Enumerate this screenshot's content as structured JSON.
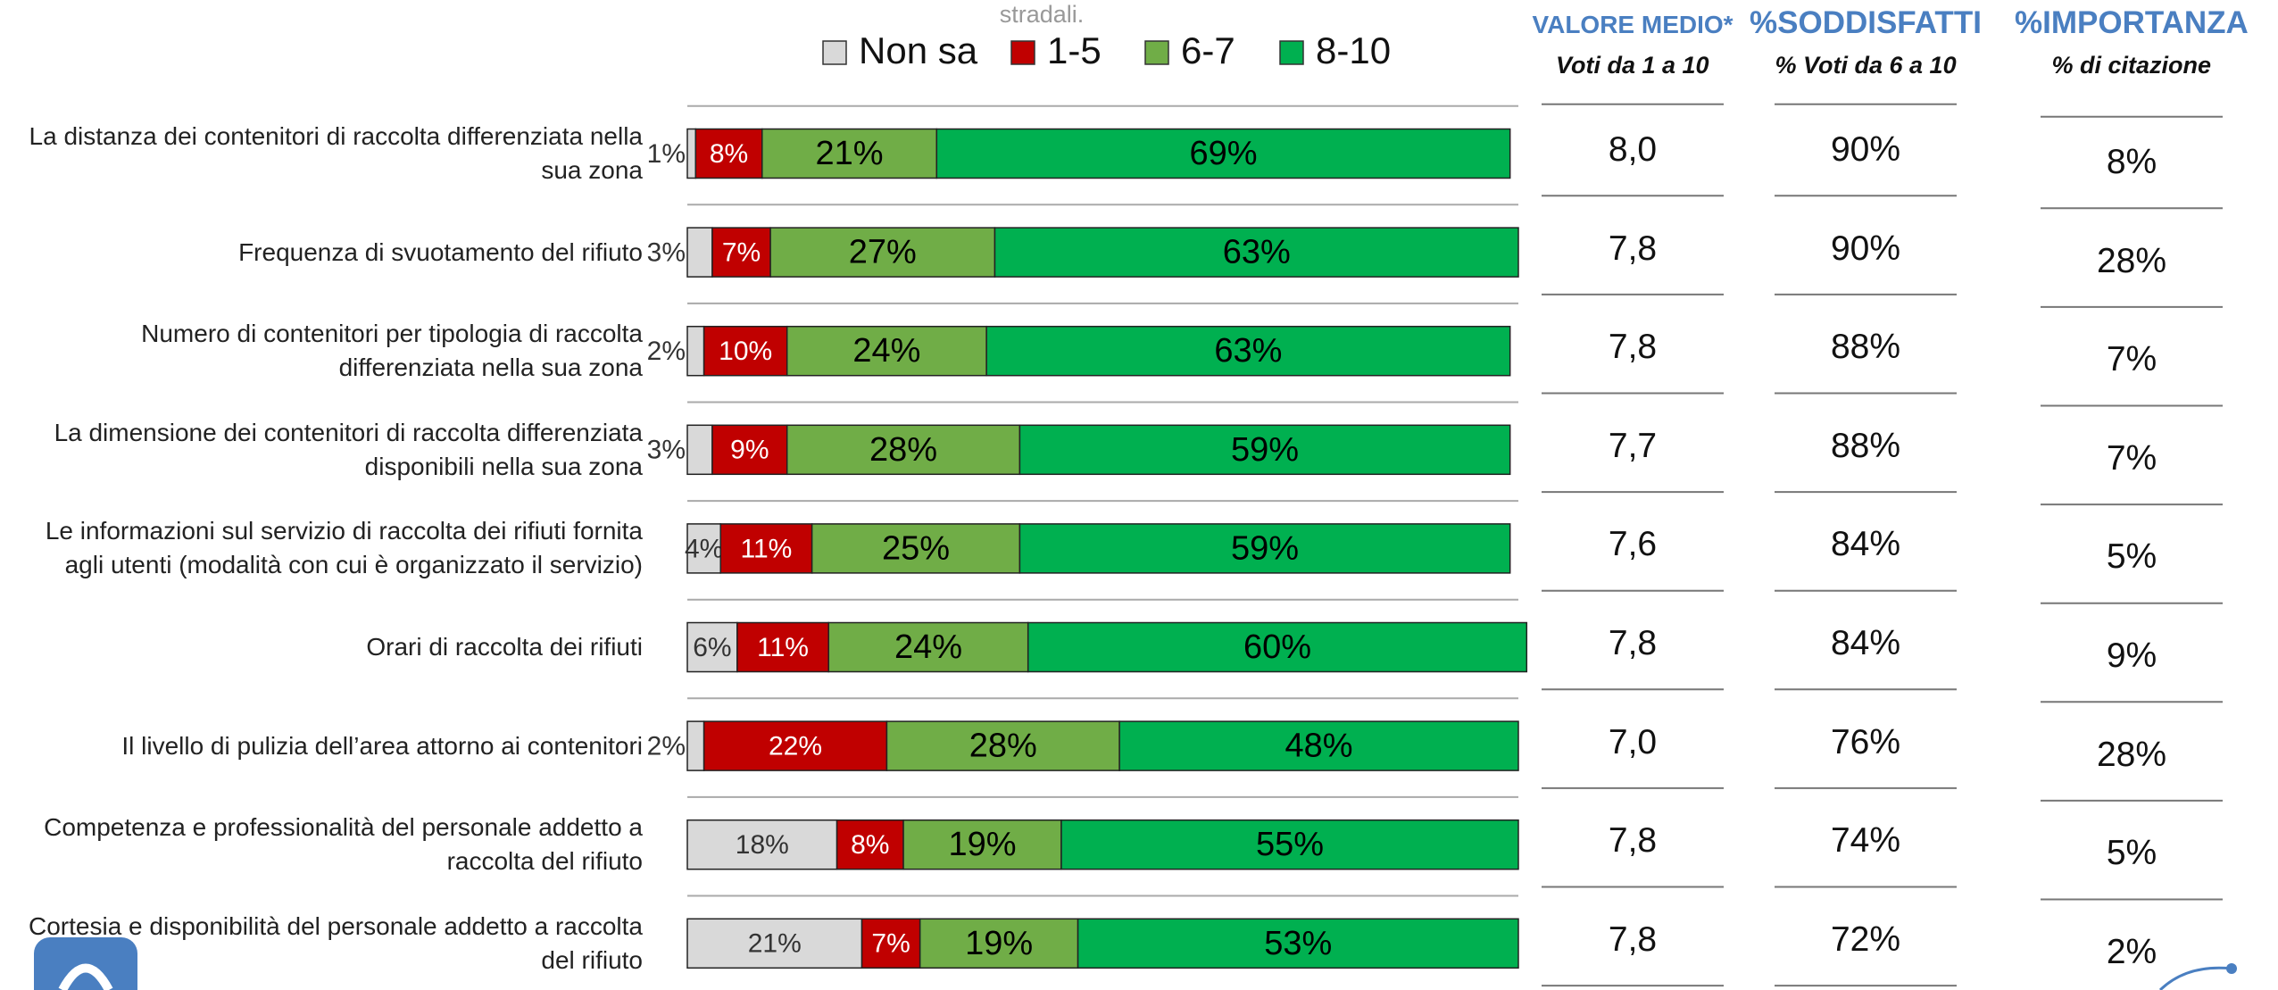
{
  "chart_data": {
    "type": "stacked-bar-horizontal",
    "title": "stradali.",
    "categories": [
      "La distanza dei contenitori di raccolta differenziata nella sua zona",
      "Frequenza di svuotamento del rifiuto",
      "Numero di contenitori per tipologia di raccolta differenziata nella sua zona",
      "La dimensione dei contenitori di raccolta differenziata disponibili nella sua zona",
      "Le informazioni sul servizio di raccolta dei rifiuti fornita agli utenti (modalità con cui è organizzato il servizio)",
      "Orari di raccolta dei rifiuti",
      "Il livello di pulizia dell’area attorno ai contenitori",
      "Competenza e professionalità del personale addetto a raccolta del rifiuto",
      "Cortesia e disponibilità del personale addetto a raccolta del rifiuto"
    ],
    "xlim": [
      0,
      100
    ],
    "series": [
      {
        "name": "Non sa",
        "color": "#d9d9d9",
        "values": [
          1,
          3,
          2,
          3,
          4,
          6,
          2,
          18,
          21
        ],
        "value_labels": [
          "1%",
          "3%",
          "2%",
          "3%",
          "4%",
          "6%",
          "2%",
          "18%",
          "21%"
        ]
      },
      {
        "name": "1-5",
        "color": "#c00000",
        "values": [
          8,
          7,
          10,
          9,
          11,
          11,
          22,
          8,
          7
        ],
        "value_labels": [
          "8%",
          "7%",
          "10%",
          "9%",
          "11%",
          "11%",
          "22%",
          "8%",
          "7%"
        ]
      },
      {
        "name": "6-7",
        "color": "#70ad47",
        "values": [
          21,
          27,
          24,
          28,
          25,
          24,
          28,
          19,
          19
        ],
        "value_labels": [
          "21%",
          "27%",
          "24%",
          "28%",
          "25%",
          "24%",
          "28%",
          "19%",
          "19%"
        ]
      },
      {
        "name": "8-10",
        "color": "#00b050",
        "values": [
          69,
          63,
          63,
          59,
          59,
          60,
          48,
          55,
          53
        ],
        "value_labels": [
          "69%",
          "63%",
          "63%",
          "59%",
          "59%",
          "60%",
          "48%",
          "55%",
          "53%"
        ]
      }
    ],
    "columns": [
      {
        "title": "VALORE MEDIO*",
        "subtitle": "Voti da 1 a 10",
        "values": [
          8.0,
          7.8,
          7.8,
          7.7,
          7.6,
          7.8,
          7.0,
          7.8,
          7.8
        ],
        "value_labels": [
          "8,0",
          "7,8",
          "7,8",
          "7,7",
          "7,6",
          "7,8",
          "7,0",
          "7,8",
          "7,8"
        ]
      },
      {
        "title": "%SODDISFATTI",
        "subtitle": "% Voti da 6 a 10",
        "values": [
          90,
          90,
          88,
          88,
          84,
          84,
          76,
          74,
          72
        ],
        "value_labels": [
          "90%",
          "90%",
          "88%",
          "88%",
          "84%",
          "84%",
          "76%",
          "74%",
          "72%"
        ]
      },
      {
        "title": "%IMPORTANZA",
        "subtitle": "% di citazione",
        "values": [
          8,
          28,
          7,
          7,
          5,
          9,
          28,
          5,
          2
        ],
        "value_labels": [
          "8%",
          "28%",
          "7%",
          "7%",
          "5%",
          "9%",
          "28%",
          "5%",
          "2%"
        ]
      }
    ]
  }
}
